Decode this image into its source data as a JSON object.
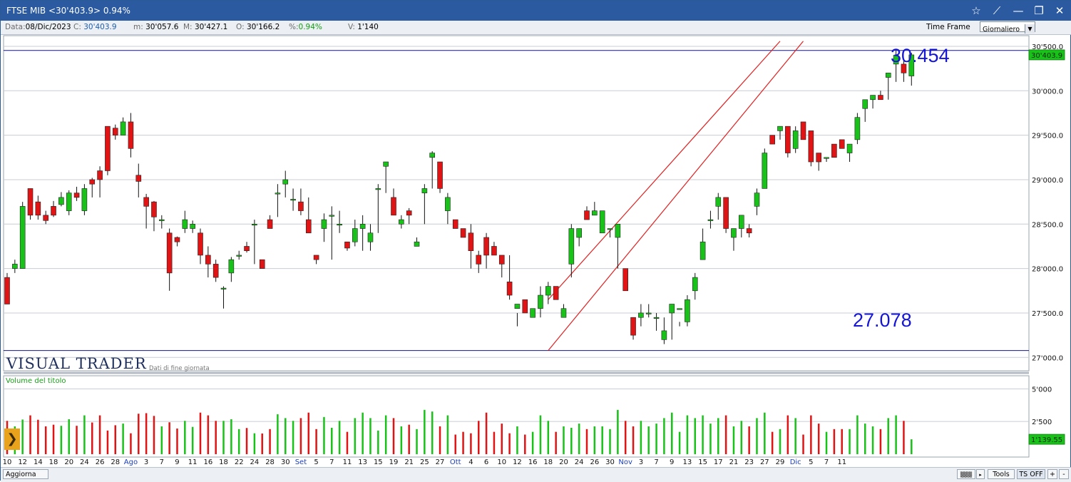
{
  "window": {
    "title": "FTSE MIB <30'403.9> 0.94%"
  },
  "infobar": {
    "date_label": "Data:",
    "date_value": "08/Dic/2023",
    "c_label": "C:",
    "c_value": "30'403.9",
    "m_label": "m:",
    "m_value": "30'057.6",
    "M_label": "M:",
    "M_value": "30'427.1",
    "o_label": "O:",
    "o_value": "30'166.2",
    "pct_label": "%:",
    "pct_value": "0.94%",
    "v_label": "V:",
    "v_value": "1'140",
    "timeframe_label": "Time Frame",
    "timeframe_value": "Giornaliero"
  },
  "branding": {
    "name": "VISUAL TRADER",
    "subtitle": "Dati di fine giornata"
  },
  "volume_panel": {
    "title": "Volume del titolo"
  },
  "annotations": {
    "high": "30.454",
    "low": "27.078"
  },
  "price_tag": "30'403.9",
  "volume_tag": "1'139.55",
  "statusbar": {
    "refresh": "Aggiorna",
    "tools": "Tools",
    "ts_off": "TS OFF",
    "plus": "+",
    "minus": "-"
  },
  "colors": {
    "up": "#19c219",
    "down": "#e01414",
    "channel": "#e02020",
    "level_line": "#141487",
    "annotation": "#1515d8"
  },
  "chart_data": [
    {
      "type": "candlestick",
      "title": "FTSE MIB",
      "ylim": [
        26850,
        30620
      ],
      "y_ticks": [
        27000,
        27500,
        28000,
        28500,
        29000,
        29500,
        30000,
        30500
      ],
      "y_tick_labels": [
        "27'000.0",
        "27'500.0",
        "28'000.0",
        "28'500.0",
        "29'000.0",
        "29'500.0",
        "30'000.0",
        "30'500.0"
      ],
      "x_tick_labels": [
        "10",
        "12",
        "14",
        "18",
        "20",
        "24",
        "26",
        "28",
        "Ago",
        "3",
        "7",
        "9",
        "11",
        "16",
        "18",
        "22",
        "24",
        "28",
        "30",
        "Set",
        "5",
        "7",
        "11",
        "13",
        "15",
        "19",
        "21",
        "25",
        "27",
        "Ott",
        "4",
        "6",
        "10",
        "12",
        "16",
        "18",
        "20",
        "24",
        "26",
        "30",
        "Nov",
        "3",
        "7",
        "9",
        "13",
        "15",
        "17",
        "21",
        "23",
        "27",
        "29",
        "Dic",
        "5",
        "7",
        "11"
      ],
      "horizontal_levels": [
        30454,
        27078
      ],
      "channel_lines": [
        {
          "from": [
            70,
            27078
          ],
          "to": [
            103,
            30558
          ]
        },
        {
          "from": [
            70,
            27650
          ],
          "to": [
            100,
            30558
          ]
        }
      ],
      "ohlc": [
        [
          27900,
          27600,
          27950,
          27700
        ],
        [
          28000,
          28050,
          27950,
          28100
        ],
        [
          28000,
          28700,
          28000,
          28750
        ],
        [
          28900,
          28600,
          28900,
          28550
        ],
        [
          28750,
          28600,
          28820,
          28550
        ],
        [
          28600,
          28540,
          28650,
          28500
        ],
        [
          28700,
          28600,
          28760,
          28580
        ],
        [
          28720,
          28800,
          28700,
          28860
        ],
        [
          28650,
          28850,
          28600,
          28880
        ],
        [
          28850,
          28800,
          28920,
          28760
        ],
        [
          28650,
          28900,
          28600,
          28950
        ],
        [
          29000,
          28950,
          29020,
          28800
        ],
        [
          29100,
          29000,
          29150,
          28800
        ],
        [
          29600,
          29100,
          29600,
          29050
        ],
        [
          29580,
          29500,
          29620,
          29450
        ],
        [
          29500,
          29650,
          29500,
          29700
        ],
        [
          29650,
          29350,
          29750,
          29250
        ],
        [
          29050,
          28980,
          29180,
          28800
        ],
        [
          28800,
          28700,
          28840,
          28450
        ],
        [
          28750,
          28580,
          28760,
          28420
        ],
        [
          28550,
          28550,
          28600,
          28450
        ],
        [
          28400,
          27950,
          28450,
          27750
        ],
        [
          28350,
          28300,
          28360,
          28250
        ],
        [
          28450,
          28550,
          28400,
          28650
        ],
        [
          28450,
          28500,
          28400,
          28540
        ],
        [
          28400,
          28150,
          28450,
          28050
        ],
        [
          28150,
          28050,
          28250,
          27900
        ],
        [
          28050,
          27900,
          28100,
          27850
        ],
        [
          27780,
          27780,
          27800,
          27550
        ],
        [
          27950,
          28100,
          27850,
          28130
        ],
        [
          28150,
          28150,
          28100,
          28200
        ],
        [
          28250,
          28200,
          28180,
          28300
        ],
        [
          28500,
          28500,
          28050,
          28550
        ],
        [
          28100,
          28000,
          28100,
          28080
        ],
        [
          28550,
          28450,
          28500,
          28600
        ],
        [
          28850,
          28850,
          28580,
          28950
        ],
        [
          28950,
          29000,
          28800,
          29100
        ],
        [
          28780,
          28780,
          28900,
          28650
        ],
        [
          28750,
          28650,
          28900,
          28600
        ],
        [
          28550,
          28400,
          28800,
          28400
        ],
        [
          28150,
          28100,
          28150,
          28050
        ],
        [
          28450,
          28550,
          28300,
          28620
        ],
        [
          28600,
          28600,
          28100,
          28700
        ],
        [
          28500,
          28500,
          28400,
          28650
        ],
        [
          28300,
          28230,
          28200,
          28250
        ],
        [
          28300,
          28450,
          28250,
          28550
        ],
        [
          28450,
          28500,
          28200,
          28600
        ],
        [
          28300,
          28400,
          28200,
          28500
        ],
        [
          28900,
          28900,
          28400,
          28950
        ],
        [
          29150,
          29200,
          28850,
          29200
        ],
        [
          28800,
          28600,
          28900,
          28600
        ],
        [
          28500,
          28550,
          28450,
          28600
        ],
        [
          28650,
          28600,
          28500,
          28680
        ],
        [
          28250,
          28300,
          28250,
          28350
        ],
        [
          28850,
          28900,
          28500,
          28950
        ],
        [
          29250,
          29300,
          28900,
          29320
        ],
        [
          29200,
          28900,
          29000,
          28850
        ],
        [
          28650,
          28800,
          28500,
          28850
        ],
        [
          28550,
          28450,
          28500,
          28500
        ],
        [
          28450,
          28350,
          28400,
          28450
        ],
        [
          28400,
          28200,
          28000,
          28500
        ],
        [
          28150,
          28050,
          27950,
          28200
        ],
        [
          28350,
          28150,
          28000,
          28400
        ],
        [
          28250,
          28150,
          28250,
          28300
        ],
        [
          28150,
          28050,
          28100,
          27900
        ],
        [
          27850,
          27700,
          28150,
          27650
        ],
        [
          27550,
          27600,
          27500,
          27350
        ],
        [
          27650,
          27500,
          27450,
          27450
        ],
        [
          27450,
          27550,
          27500,
          27550
        ],
        [
          27550,
          27700,
          27450,
          27800
        ],
        [
          27700,
          27800,
          27600,
          27850
        ],
        [
          27800,
          27650,
          27700,
          27750
        ],
        [
          27450,
          27550,
          27600,
          27450
        ],
        [
          28050,
          28450,
          27900,
          28500
        ],
        [
          28350,
          28450,
          28250,
          28450
        ],
        [
          28650,
          28550,
          28600,
          28700
        ],
        [
          28600,
          28650,
          28600,
          28750
        ],
        [
          28400,
          28650,
          28500,
          28650
        ],
        [
          28450,
          28450,
          28350,
          28450
        ],
        [
          28350,
          28500,
          28000,
          28450
        ],
        [
          28000,
          27750,
          28000,
          27750
        ],
        [
          27450,
          27250,
          27350,
          27200
        ],
        [
          27450,
          27500,
          27350,
          27600
        ],
        [
          27500,
          27500,
          27450,
          27600
        ],
        [
          27450,
          27450,
          27300,
          27500
        ],
        [
          27200,
          27300,
          27150,
          27450
        ],
        [
          27500,
          27600,
          27200,
          27600
        ],
        [
          27550,
          27550,
          27350,
          27400
        ],
        [
          27400,
          27650,
          27350,
          27700
        ],
        [
          27750,
          27900,
          27650,
          27950
        ],
        [
          28100,
          28300,
          28100,
          28450
        ],
        [
          28550,
          28550,
          28450,
          28650
        ],
        [
          28700,
          28800,
          28550,
          28850
        ],
        [
          28800,
          28450,
          28750,
          28400
        ],
        [
          28350,
          28450,
          28200,
          28350
        ],
        [
          28450,
          28600,
          28350,
          28600
        ],
        [
          28450,
          28400,
          28350,
          28500
        ],
        [
          28700,
          28850,
          28600,
          28900
        ],
        [
          28900,
          29300,
          28950,
          29350
        ],
        [
          29500,
          29400,
          29500,
          29450
        ],
        [
          29550,
          29600,
          29450,
          29550
        ],
        [
          29600,
          29300,
          29600,
          29250
        ],
        [
          29350,
          29550,
          29300,
          29600
        ],
        [
          29650,
          29450,
          29600,
          29600
        ],
        [
          29550,
          29200,
          29500,
          29150
        ],
        [
          29300,
          29200,
          29300,
          29100
        ],
        [
          29250,
          29250,
          29200,
          29250
        ],
        [
          29400,
          29250,
          29400,
          29300
        ],
        [
          29450,
          29350,
          29450,
          29350
        ],
        [
          29300,
          29400,
          29300,
          29200
        ],
        [
          29450,
          29700,
          29400,
          29750
        ],
        [
          29800,
          29900,
          29850,
          29650
        ],
        [
          29900,
          29950,
          29800,
          29950
        ],
        [
          29950,
          29900,
          30000,
          29900
        ],
        [
          30150,
          30200,
          29900,
          30200
        ],
        [
          30300,
          30400,
          30100,
          30450
        ],
        [
          30300,
          30200,
          30350,
          30100
        ],
        [
          30166.2,
          30403.9,
          30057.6,
          30427.1
        ]
      ],
      "note": "ohlc rows are [open, close, low, high] per trading day, read off the chart"
    },
    {
      "type": "bar",
      "title": "Volume del titolo",
      "ylim": [
        0,
        6000
      ],
      "y_ticks": [
        2500,
        5000
      ],
      "y_tick_labels": [
        "2'500",
        "5'000"
      ],
      "last_value": 1139.55
    }
  ]
}
